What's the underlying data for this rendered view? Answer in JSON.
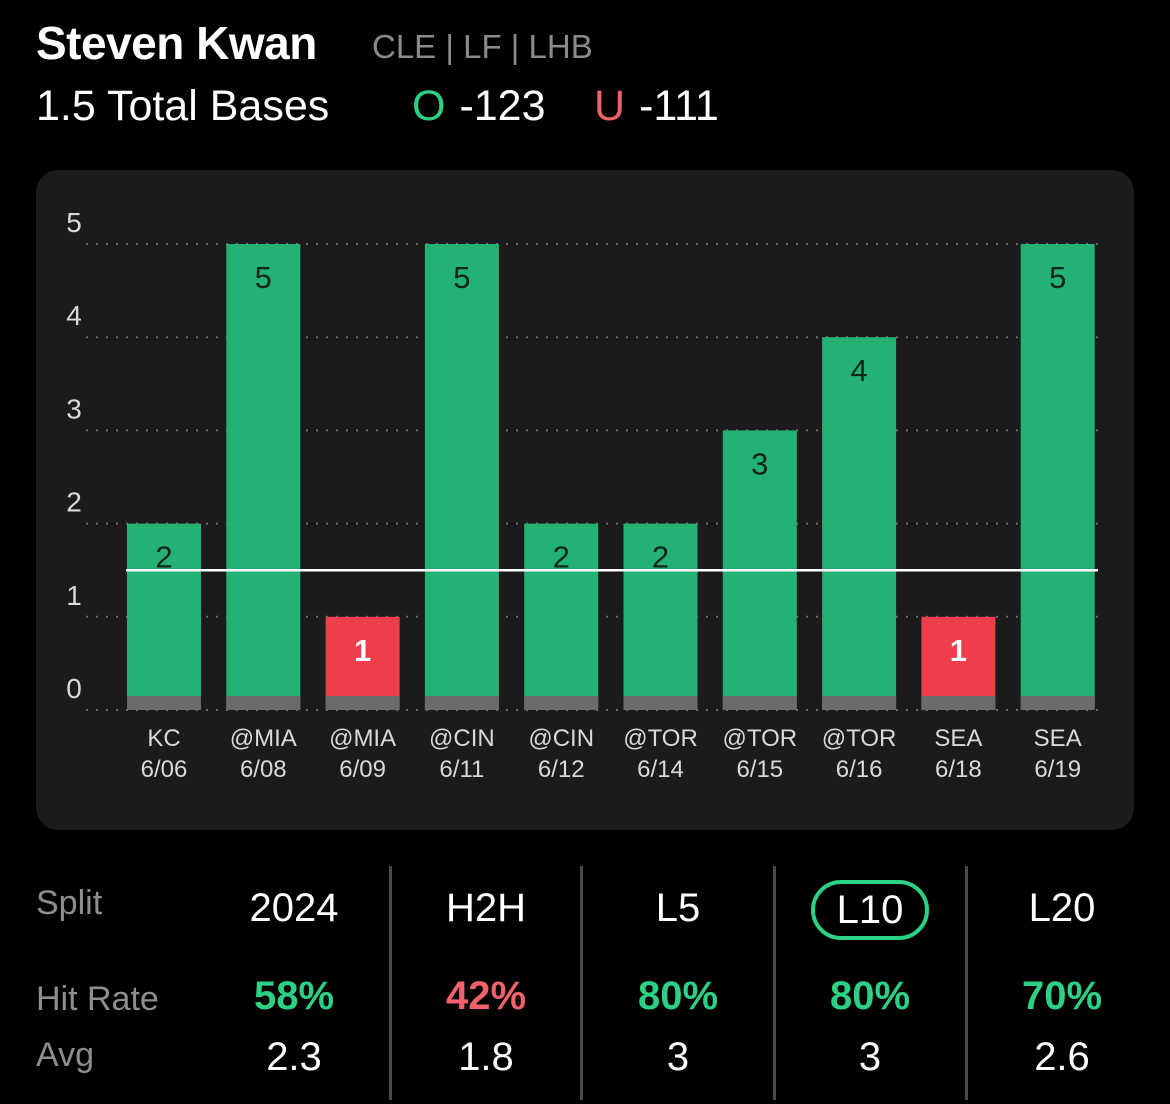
{
  "header": {
    "player_name": "Steven Kwan",
    "player_meta": "CLE | LF | LHB",
    "prop_line": "1.5 Total Bases",
    "over_letter": "O",
    "over_odds": "-123",
    "under_letter": "U",
    "under_odds": "-111"
  },
  "colors": {
    "hit": "#23b273",
    "miss": "#ee3e4a",
    "green_text": "#2bd184",
    "red_text": "#f0616b",
    "base_strip": "#6b6b6b"
  },
  "chart_data": {
    "type": "bar",
    "title": "1.5 Total Bases",
    "categories": [
      "KC",
      "@MIA",
      "@MIA",
      "@CIN",
      "@CIN",
      "@TOR",
      "@TOR",
      "@TOR",
      "SEA",
      "SEA"
    ],
    "dates": [
      "6/06",
      "6/08",
      "6/09",
      "6/11",
      "6/12",
      "6/14",
      "6/15",
      "6/16",
      "6/18",
      "6/19"
    ],
    "values": [
      2,
      5,
      1,
      5,
      2,
      2,
      3,
      4,
      1,
      5
    ],
    "threshold": 1.5,
    "ylim": [
      0,
      5
    ],
    "yticks": [
      0,
      1,
      2,
      3,
      4,
      5
    ],
    "xlabel": "",
    "ylabel": "",
    "grid": true
  },
  "splits": {
    "row_labels": {
      "split": "Split",
      "hit_rate": "Hit Rate",
      "avg": "Avg"
    },
    "columns": [
      {
        "label": "2024",
        "hit_rate": "58%",
        "hit_color": "green",
        "avg": "2.3",
        "active": false
      },
      {
        "label": "H2H",
        "hit_rate": "42%",
        "hit_color": "red",
        "avg": "1.8",
        "active": false
      },
      {
        "label": "L5",
        "hit_rate": "80%",
        "hit_color": "green",
        "avg": "3",
        "active": false
      },
      {
        "label": "L10",
        "hit_rate": "80%",
        "hit_color": "green",
        "avg": "3",
        "active": true
      },
      {
        "label": "L20",
        "hit_rate": "70%",
        "hit_color": "green",
        "avg": "2.6",
        "active": false
      }
    ]
  }
}
